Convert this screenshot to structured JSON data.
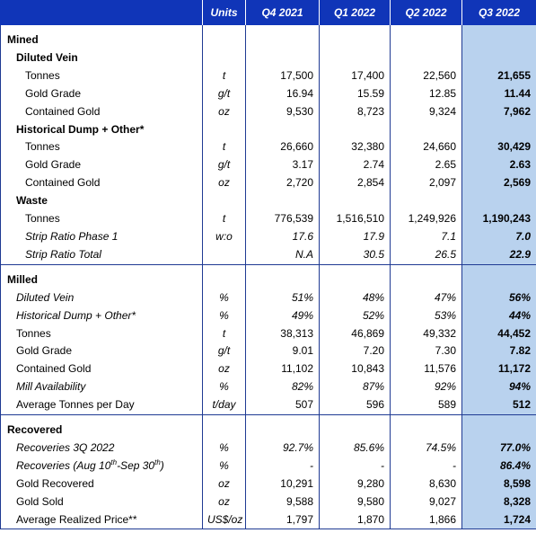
{
  "header": {
    "label": "",
    "units": "Units",
    "periods": [
      "Q4 2021",
      "Q1 2022",
      "Q2 2022",
      "Q3 2022"
    ]
  },
  "rows": [
    {
      "kind": "sec",
      "label": "Mined"
    },
    {
      "kind": "sub",
      "label": "Diluted Vein"
    },
    {
      "kind": "i1",
      "label": "Tonnes",
      "unit": "t",
      "values": [
        "17,500",
        "17,400",
        "22,560",
        "21,655"
      ]
    },
    {
      "kind": "i1",
      "label": "Gold Grade",
      "unit": "g/t",
      "values": [
        "16.94",
        "15.59",
        "12.85",
        "11.44"
      ]
    },
    {
      "kind": "i1",
      "label": "Contained Gold",
      "unit": "oz",
      "values": [
        "9,530",
        "8,723",
        "9,324",
        "7,962"
      ]
    },
    {
      "kind": "sub",
      "label": "Historical Dump + Other*"
    },
    {
      "kind": "i1",
      "label": "Tonnes",
      "unit": "t",
      "values": [
        "26,660",
        "32,380",
        "24,660",
        "30,429"
      ]
    },
    {
      "kind": "i1",
      "label": "Gold Grade",
      "unit": "g/t",
      "values": [
        "3.17",
        "2.74",
        "2.65",
        "2.63"
      ]
    },
    {
      "kind": "i1",
      "label": "Contained Gold",
      "unit": "oz",
      "values": [
        "2,720",
        "2,854",
        "2,097",
        "2,569"
      ]
    },
    {
      "kind": "sub",
      "label": "Waste"
    },
    {
      "kind": "i1",
      "label": "Tonnes",
      "unit": "t",
      "values": [
        "776,539",
        "1,516,510",
        "1,249,926",
        "1,190,243"
      ]
    },
    {
      "kind": "i1it",
      "label": "Strip Ratio Phase 1",
      "unit": "w:o",
      "values": [
        "17.6",
        "17.9",
        "7.1",
        "7.0"
      ]
    },
    {
      "kind": "i1it",
      "label": "Strip Ratio Total",
      "unit": "",
      "values": [
        "N.A",
        "30.5",
        "26.5",
        "22.9"
      ]
    },
    {
      "kind": "sec",
      "label": "Milled"
    },
    {
      "kind": "i2it",
      "label": "Diluted Vein",
      "unit": "%",
      "values": [
        "51%",
        "48%",
        "47%",
        "56%"
      ]
    },
    {
      "kind": "i2it",
      "label": "Historical Dump + Other*",
      "unit": "%",
      "values": [
        "49%",
        "52%",
        "53%",
        "44%"
      ]
    },
    {
      "kind": "i2",
      "label": "Tonnes",
      "unit": "t",
      "values": [
        "38,313",
        "46,869",
        "49,332",
        "44,452"
      ]
    },
    {
      "kind": "i2",
      "label": "Gold Grade",
      "unit": "g/t",
      "values": [
        "9.01",
        "7.20",
        "7.30",
        "7.82"
      ]
    },
    {
      "kind": "i2",
      "label": "Contained Gold",
      "unit": "oz",
      "values": [
        "11,102",
        "10,843",
        "11,576",
        "11,172"
      ]
    },
    {
      "kind": "i2it",
      "label": "Mill Availability",
      "unit": "%",
      "values": [
        "82%",
        "87%",
        "92%",
        "94%"
      ]
    },
    {
      "kind": "i2",
      "label": "Average Tonnes per Day",
      "unit": "t/day",
      "values": [
        "507",
        "596",
        "589",
        "512"
      ]
    },
    {
      "kind": "sec",
      "label": "Recovered"
    },
    {
      "kind": "i2",
      "label": "Recoveries 3Q 2022",
      "unit": "%",
      "values": [
        "92.7%",
        "85.6%",
        "74.5%",
        "77.0%"
      ],
      "italic_values": true
    },
    {
      "kind": "i2",
      "label": "Recoveries (Aug 10th-Sep 30th)",
      "unit": "%",
      "values": [
        "-",
        "-",
        "-",
        "86.4%"
      ],
      "italic_values": true
    },
    {
      "kind": "i2",
      "label": "Gold Recovered",
      "unit": "oz",
      "values": [
        "10,291",
        "9,280",
        "8,630",
        "8,598"
      ]
    },
    {
      "kind": "i2",
      "label": "Gold Sold",
      "unit": "oz",
      "values": [
        "9,588",
        "9,580",
        "9,027",
        "8,328"
      ]
    },
    {
      "kind": "i2",
      "label": "Average Realized Price**",
      "unit": "US$/oz",
      "values": [
        "1,797",
        "1,870",
        "1,866",
        "1,724"
      ]
    }
  ],
  "colors": {
    "header_bg": "#1035b8",
    "highlight_bg": "#b9d2ee",
    "border": "#1f3a93"
  }
}
